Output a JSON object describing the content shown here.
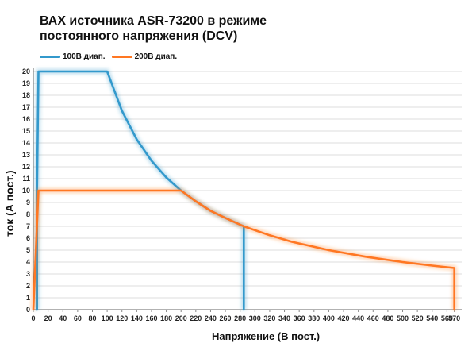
{
  "chart_data": {
    "type": "line",
    "title": "ВАХ источника ASR-73200 в режиме",
    "subtitle": "постоянного напряжения (DCV)",
    "xlabel": "Напряжение (В пост.)",
    "ylabel": "ток (А пост.)",
    "xlim": [
      0,
      580
    ],
    "ylim": [
      0,
      20
    ],
    "x_ticks": [
      0,
      20,
      40,
      60,
      80,
      100,
      120,
      140,
      160,
      180,
      200,
      220,
      240,
      260,
      280,
      300,
      320,
      340,
      360,
      380,
      400,
      420,
      440,
      460,
      480,
      500,
      520,
      540,
      560,
      570
    ],
    "y_ticks": [
      0,
      1,
      2,
      3,
      4,
      5,
      6,
      7,
      8,
      9,
      10,
      11,
      12,
      13,
      14,
      15,
      16,
      17,
      18,
      19,
      20
    ],
    "grid": "horizontal",
    "legend_position": "top-left",
    "series": [
      {
        "name": "100В диап.",
        "color": "#3399cc",
        "points": [
          [
            5,
            0
          ],
          [
            5,
            10
          ],
          [
            7,
            20
          ],
          [
            100,
            20
          ],
          [
            120,
            16.7
          ],
          [
            140,
            14.3
          ],
          [
            160,
            12.5
          ],
          [
            180,
            11.1
          ],
          [
            200,
            10
          ],
          [
            220,
            9.1
          ],
          [
            240,
            8.3
          ],
          [
            260,
            7.7
          ],
          [
            285,
            7
          ],
          [
            285,
            0
          ]
        ]
      },
      {
        "name": "200В диап.",
        "color": "#ff7722",
        "points": [
          [
            0,
            0
          ],
          [
            7,
            10
          ],
          [
            200,
            10
          ],
          [
            220,
            9.1
          ],
          [
            240,
            8.3
          ],
          [
            260,
            7.7
          ],
          [
            285,
            7
          ],
          [
            320,
            6.25
          ],
          [
            350,
            5.7
          ],
          [
            400,
            5
          ],
          [
            450,
            4.45
          ],
          [
            500,
            4
          ],
          [
            540,
            3.7
          ],
          [
            570,
            3.5
          ],
          [
            570,
            0
          ]
        ]
      }
    ]
  }
}
